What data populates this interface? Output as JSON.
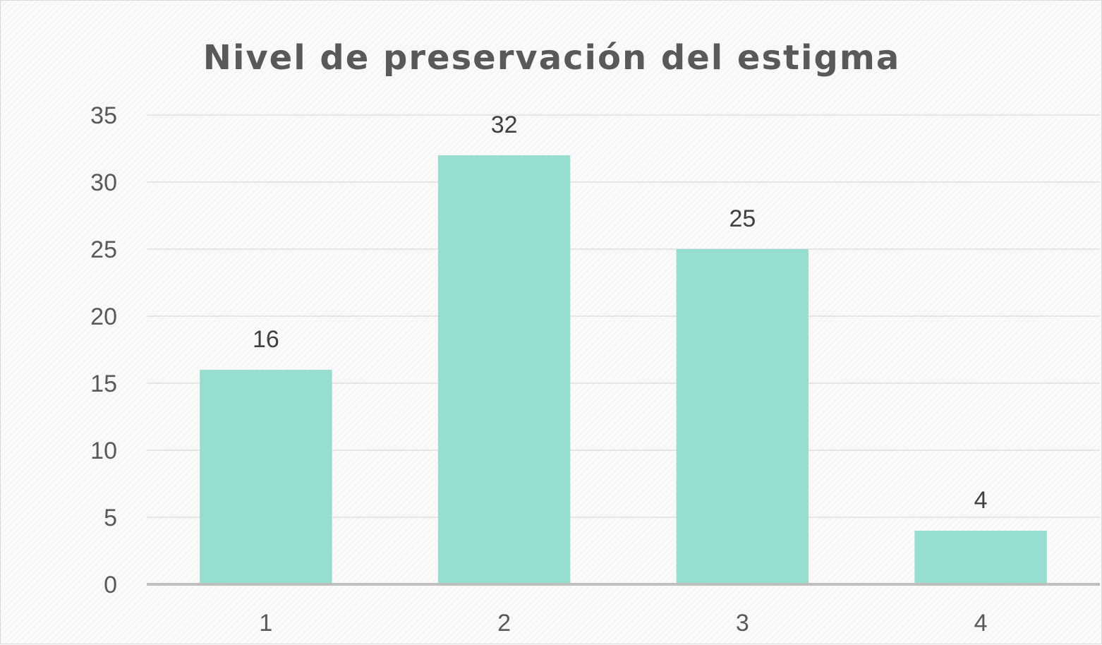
{
  "chart_data": {
    "type": "bar",
    "title": "Nivel de preservación del estigma",
    "categories": [
      "1",
      "2",
      "3",
      "4"
    ],
    "values": [
      16,
      32,
      25,
      4
    ],
    "data_labels": [
      "16",
      "32",
      "25",
      "4"
    ],
    "xlabel": "",
    "ylabel": "",
    "ylim": [
      0,
      35
    ],
    "ytick_step": 5,
    "yticks": [
      "0",
      "5",
      "10",
      "15",
      "20",
      "25",
      "30",
      "35"
    ],
    "grid": true,
    "legend": "none",
    "colors": {
      "bar": "#95ded0",
      "grid": "#e6e6e6",
      "axis": "#bfbfbf",
      "title": "#595959",
      "ticks": "#595959",
      "data_labels": "#404040"
    }
  }
}
